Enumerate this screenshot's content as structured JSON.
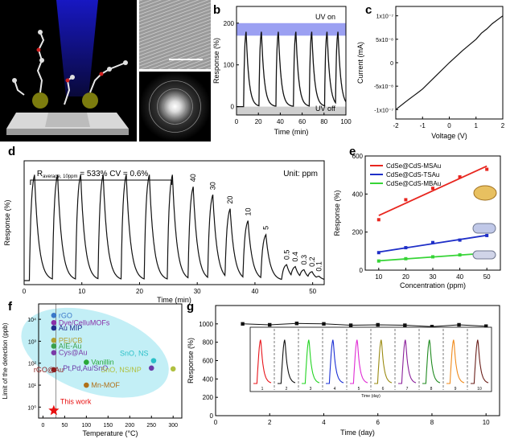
{
  "panel_labels": {
    "a": "a",
    "b": "b",
    "c": "c",
    "d": "d",
    "e": "e",
    "f": "f",
    "g": "g"
  },
  "chart_data": [
    {
      "id": "b",
      "type": "line",
      "xlabel": "Time (min)",
      "ylabel": "Response (%)",
      "xlim": [
        0,
        100
      ],
      "ylim": [
        -20,
        240
      ],
      "xticks": [
        0,
        20,
        40,
        60,
        80,
        100
      ],
      "yticks": [
        0,
        100,
        200
      ],
      "annotations": [
        "UV on",
        "UV off"
      ],
      "uv_on_band": [
        170,
        200
      ],
      "uv_off_band": [
        -20,
        0
      ],
      "pulse_starts": [
        6.5,
        20.5,
        36,
        52,
        66.5,
        80.5,
        90.5
      ],
      "peak": 180
    },
    {
      "id": "c",
      "type": "line",
      "xlabel": "Voltage (V)",
      "ylabel": "Current (mA)",
      "xlim": [
        -2,
        2
      ],
      "ylim": [
        -1.2e-07,
        1.2e-07
      ],
      "xticks": [
        -2,
        -1,
        0,
        1,
        2
      ],
      "yticks": [
        "-1x10⁻⁷",
        "-5x10⁻⁸",
        "0",
        "5x10⁻⁸",
        "1x10⁻⁷"
      ],
      "x": [
        -2,
        -1.6,
        -1.3,
        -1.2,
        -1.0,
        -0.5,
        0,
        0.5,
        1.0,
        1.2,
        1.4,
        1.6,
        2
      ],
      "y": [
        -1e-07,
        -8.2e-08,
        -6.9e-08,
        -6.5e-08,
        -5.6e-08,
        -2.8e-08,
        0,
        2.6e-08,
        5e-08,
        6.3e-08,
        7.2e-08,
        8.3e-08,
        1e-07
      ]
    },
    {
      "id": "d",
      "type": "line",
      "xlabel": "Time (min)",
      "ylabel": "Response (%)",
      "xlim": [
        0,
        52
      ],
      "ylim": [
        -20,
        600
      ],
      "xticks": [
        0,
        10,
        20,
        30,
        40,
        50
      ],
      "unit_label": "Unit: ppm",
      "stat_label": {
        "pre": "R",
        "sub": "average, 10ppm",
        "post": " = 533%  CV = 0.6%"
      },
      "pulse_starts": [
        0.9,
        4.9,
        8.9,
        12.8,
        16.8,
        20.8,
        24.8,
        28.4,
        31.8,
        34.8,
        37.9,
        41,
        44.6,
        46.1,
        47.6,
        49,
        50.2
      ],
      "peaks": [
        530,
        530,
        530,
        530,
        530,
        530,
        530,
        470,
        430,
        360,
        300,
        230,
        80,
        70,
        55,
        45,
        22
      ],
      "peak_labels": [
        "40",
        "30",
        "20",
        "10",
        "5",
        "0.5",
        "0.4",
        "0.3",
        "0.2",
        "0.1"
      ],
      "labeled_from_index": 7
    },
    {
      "id": "e",
      "type": "scatter",
      "xlabel": "Concentration (ppm)",
      "ylabel": "Response (%)",
      "xlim": [
        5,
        55
      ],
      "ylim": [
        0,
        600
      ],
      "xticks": [
        10,
        20,
        30,
        40,
        50
      ],
      "yticks": [
        0,
        200,
        400,
        600
      ],
      "x": [
        10,
        20,
        30,
        40,
        50
      ],
      "series": [
        {
          "name": "CdSe@CdS-MSAu",
          "color": "#e8261f",
          "values": [
            265,
            370,
            430,
            490,
            530
          ]
        },
        {
          "name": "CdSe@CdS-TSAu",
          "color": "#1f2fc8",
          "values": [
            92,
            118,
            145,
            158,
            182
          ]
        },
        {
          "name": "CdSe@CdS-MBAu",
          "color": "#36d436",
          "values": [
            48,
            60,
            70,
            80,
            88
          ]
        }
      ]
    },
    {
      "id": "f",
      "type": "scatter",
      "xlabel": "Temperature (°C)",
      "ylabel": "Limit of the detection (ppb)",
      "xlim": [
        -10,
        320
      ],
      "ylim_log10": [
        -0.5,
        4.7
      ],
      "xticks": [
        0,
        50,
        100,
        150,
        200,
        250,
        300
      ],
      "yticks": [
        "10⁰",
        "10¹",
        "10²",
        "10³",
        "10⁴"
      ],
      "points": [
        {
          "label": "rGO",
          "x": 25,
          "y": 15000,
          "color": "#3a78c9"
        },
        {
          "label": "Dye/CelluMOFs",
          "x": 25,
          "y": 7000,
          "color": "#8a2fa8"
        },
        {
          "label": "Au MIP",
          "x": 25,
          "y": 4000,
          "color": "#1e2e8e"
        },
        {
          "label": "PEI/CB",
          "x": 25,
          "y": 1100,
          "color": "#b0a030"
        },
        {
          "label": "AIE-Au",
          "x": 25,
          "y": 600,
          "color": "#3aa04a"
        },
        {
          "label": "Cys@Au",
          "x": 25,
          "y": 300,
          "color": "#7a3aa8"
        },
        {
          "label": "rGO@Au",
          "x": 25,
          "y": 50,
          "color": "#8b1f1f"
        },
        {
          "label": "Vanillin",
          "x": 100,
          "y": 110,
          "color": "#28a838"
        },
        {
          "label": "Pt,Pd,Au/SnO",
          "x": 250,
          "y": 60,
          "color": "#6a3aa8"
        },
        {
          "label": "SnO, NS",
          "x": 255,
          "y": 130,
          "color": "#2ac0c8"
        },
        {
          "label": "SnO, NS/NP",
          "x": 300,
          "y": 55,
          "color": "#b0c040"
        },
        {
          "label": "Mn-MOF",
          "x": 100,
          "y": 10,
          "color": "#b07018"
        }
      ],
      "highlight": {
        "label": "This work",
        "x": 25,
        "y": 0.7,
        "color": "#e81010"
      }
    },
    {
      "id": "g",
      "type": "line",
      "xlabel": "Time (day)",
      "ylabel": "Response (%)",
      "xlim": [
        0,
        10.5
      ],
      "ylim": [
        0,
        1200
      ],
      "xticks": [
        0,
        2,
        4,
        6,
        8,
        10
      ],
      "yticks": [
        0,
        200,
        400,
        600,
        800,
        1000
      ],
      "x": [
        1,
        2,
        3,
        4,
        5,
        6,
        7,
        8,
        9,
        10
      ],
      "values": [
        1000,
        990,
        1005,
        1000,
        985,
        990,
        985,
        970,
        990,
        975
      ],
      "inset": {
        "xlabel": "Time (day)",
        "xticks": [
          "1",
          "2",
          "3",
          "4",
          "5",
          "6",
          "7",
          "8",
          "9",
          "10"
        ],
        "colors": [
          "#e8141a",
          "#111111",
          "#22d422",
          "#1a2fd4",
          "#e02ad4",
          "#9a8a10",
          "#8a1f9a",
          "#1f8a1f",
          "#f08a1a",
          "#6a1f1a"
        ]
      }
    }
  ]
}
